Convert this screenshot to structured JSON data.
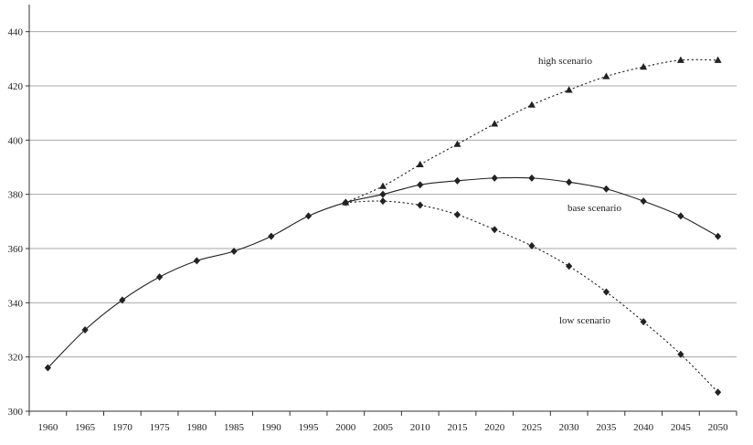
{
  "chart_data": {
    "type": "line",
    "title": "",
    "xlabel": "",
    "ylabel": "",
    "x": [
      1960,
      1965,
      1970,
      1975,
      1980,
      1985,
      1990,
      1995,
      2000,
      2005,
      2010,
      2015,
      2020,
      2025,
      2030,
      2035,
      2040,
      2045,
      2050
    ],
    "xlim": [
      1957.5,
      2052.5
    ],
    "ylim": [
      300,
      450
    ],
    "yticks": [
      300,
      320,
      340,
      360,
      380,
      400,
      420,
      440
    ],
    "grid": "horizontal",
    "series": [
      {
        "name": "high scenario",
        "style": "dotted",
        "marker": "triangle",
        "x": [
          2000,
          2005,
          2010,
          2015,
          2020,
          2025,
          2030,
          2035,
          2040,
          2045,
          2050
        ],
        "values": [
          377,
          383,
          391,
          398.5,
          406,
          413,
          418.5,
          423.5,
          427,
          429.5,
          429.5
        ]
      },
      {
        "name": "base scenario",
        "style": "solid",
        "marker": "diamond",
        "x": [
          1960,
          1965,
          1970,
          1975,
          1980,
          1985,
          1990,
          1995,
          2000,
          2005,
          2010,
          2015,
          2020,
          2025,
          2030,
          2035,
          2040,
          2045,
          2050
        ],
        "values": [
          316,
          330,
          341,
          349.5,
          355.5,
          359,
          364.5,
          372,
          377,
          380,
          383.5,
          385,
          386,
          386,
          384.5,
          382,
          377.5,
          372,
          364.5
        ]
      },
      {
        "name": "low scenario",
        "style": "dotted",
        "marker": "diamond",
        "x": [
          2000,
          2005,
          2010,
          2015,
          2020,
          2025,
          2030,
          2035,
          2040,
          2045,
          2050
        ],
        "values": [
          377,
          377.5,
          376,
          372.5,
          367,
          361,
          353.5,
          344,
          333,
          321,
          307
        ]
      }
    ]
  }
}
